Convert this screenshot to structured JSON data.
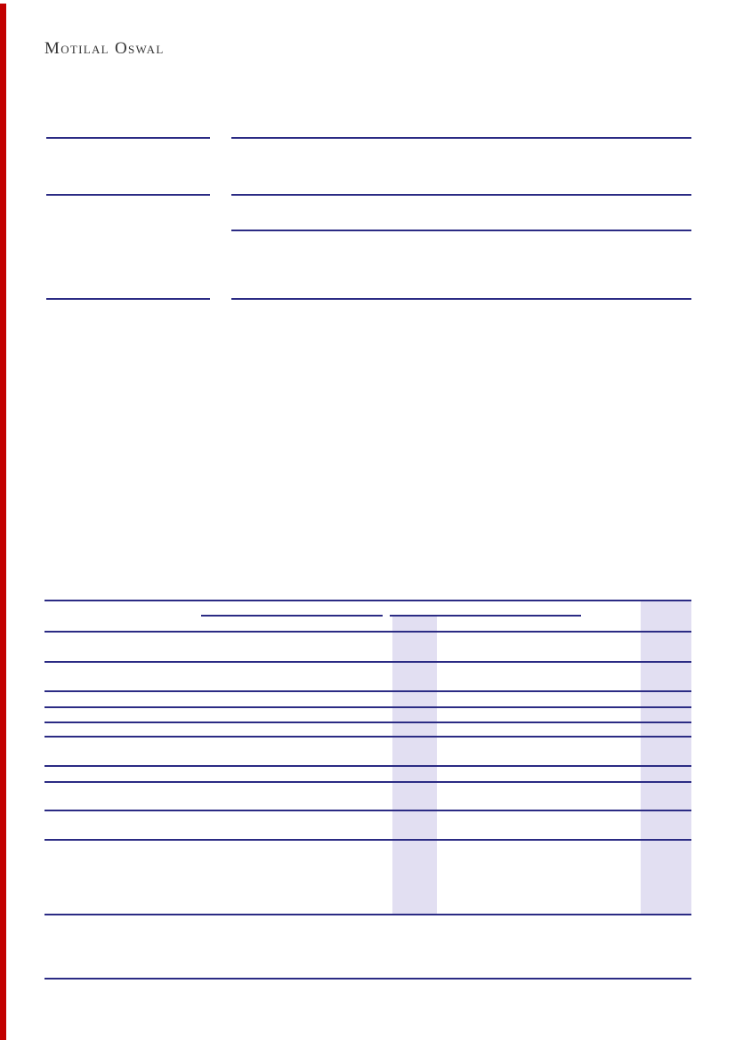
{
  "brand": {
    "logo_text": "Motilal Oswal"
  },
  "colors": {
    "rule_navy": "#2b2b84",
    "highlight_lavender": "#e2dff2",
    "left_bar_red": "#c20000",
    "logo_gray": "#343434",
    "page_background": "#ffffff"
  }
}
